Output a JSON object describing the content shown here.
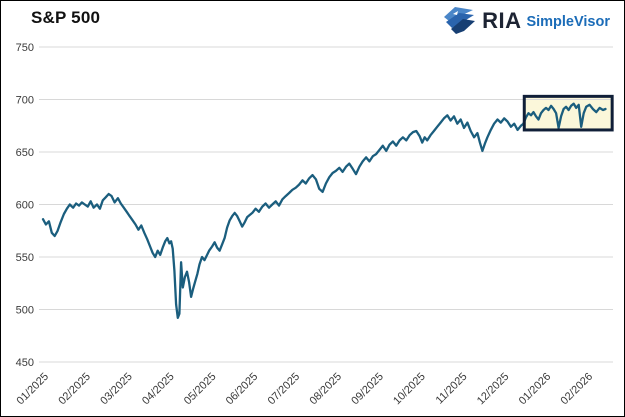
{
  "header": {
    "title": "S&P 500",
    "logo": {
      "brand": "RIA",
      "product": "SimpleVisor",
      "icon": "eagle-icon",
      "brand_color": "#1d2433",
      "product_color": "#1b6cb8",
      "icon_colors": [
        "#4a86c8",
        "#2a64ad",
        "#173f73"
      ]
    }
  },
  "chart_data": {
    "type": "line",
    "title": "S&P 500",
    "xlabel": "",
    "ylabel": "",
    "x_unit": "months_since_01_2025",
    "x_tick_labels": [
      "01/2025",
      "02/2025",
      "03/2025",
      "04/2025",
      "05/2025",
      "06/2025",
      "07/2025",
      "08/2025",
      "09/2025",
      "10/2025",
      "11/2025",
      "12/2025",
      "01/2026",
      "02/2026"
    ],
    "y_tick_labels": [
      750,
      700,
      650,
      600,
      550,
      500,
      450
    ],
    "ylim": [
      450,
      750
    ],
    "grid": "horizontal",
    "grid_color": "#d8d8d8",
    "tick_label_color": "#3a3a3a",
    "legend": "none",
    "line_color": "#1b5e7e",
    "highlight_box": {
      "name": "recent-range-highlight",
      "t_start": 11.5,
      "t_end": 13.6,
      "v_top": 703,
      "v_bottom": 671,
      "fill": "#fbf7da",
      "border_color": "#101f38"
    },
    "series": [
      {
        "name": "S&P 500",
        "points": [
          [
            0.0,
            586
          ],
          [
            0.07,
            581
          ],
          [
            0.14,
            584
          ],
          [
            0.21,
            573
          ],
          [
            0.28,
            570
          ],
          [
            0.35,
            575
          ],
          [
            0.42,
            583
          ],
          [
            0.5,
            591
          ],
          [
            0.57,
            596
          ],
          [
            0.64,
            600
          ],
          [
            0.72,
            597
          ],
          [
            0.79,
            601
          ],
          [
            0.86,
            599
          ],
          [
            0.93,
            602
          ],
          [
            1.0,
            600
          ],
          [
            1.07,
            598
          ],
          [
            1.14,
            603
          ],
          [
            1.21,
            597
          ],
          [
            1.29,
            600
          ],
          [
            1.36,
            596
          ],
          [
            1.43,
            604
          ],
          [
            1.5,
            607
          ],
          [
            1.57,
            610
          ],
          [
            1.64,
            608
          ],
          [
            1.71,
            602
          ],
          [
            1.79,
            606
          ],
          [
            1.86,
            601
          ],
          [
            1.93,
            597
          ],
          [
            2.0,
            593
          ],
          [
            2.07,
            589
          ],
          [
            2.14,
            585
          ],
          [
            2.21,
            581
          ],
          [
            2.28,
            576
          ],
          [
            2.35,
            580
          ],
          [
            2.42,
            573
          ],
          [
            2.49,
            567
          ],
          [
            2.56,
            560
          ],
          [
            2.62,
            554
          ],
          [
            2.68,
            550
          ],
          [
            2.74,
            556
          ],
          [
            2.8,
            552
          ],
          [
            2.86,
            559
          ],
          [
            2.92,
            565
          ],
          [
            2.97,
            568
          ],
          [
            3.02,
            563
          ],
          [
            3.06,
            565
          ],
          [
            3.1,
            558
          ],
          [
            3.14,
            537
          ],
          [
            3.18,
            505
          ],
          [
            3.22,
            492
          ],
          [
            3.26,
            496
          ],
          [
            3.3,
            545
          ],
          [
            3.34,
            521
          ],
          [
            3.39,
            531
          ],
          [
            3.44,
            536
          ],
          [
            3.49,
            526
          ],
          [
            3.54,
            512
          ],
          [
            3.59,
            520
          ],
          [
            3.64,
            527
          ],
          [
            3.69,
            534
          ],
          [
            3.74,
            543
          ],
          [
            3.8,
            550
          ],
          [
            3.86,
            547
          ],
          [
            3.92,
            552
          ],
          [
            3.97,
            556
          ],
          [
            4.04,
            560
          ],
          [
            4.1,
            564
          ],
          [
            4.16,
            559
          ],
          [
            4.22,
            556
          ],
          [
            4.28,
            562
          ],
          [
            4.34,
            568
          ],
          [
            4.4,
            578
          ],
          [
            4.46,
            585
          ],
          [
            4.52,
            589
          ],
          [
            4.58,
            592
          ],
          [
            4.64,
            589
          ],
          [
            4.7,
            584
          ],
          [
            4.76,
            579
          ],
          [
            4.82,
            583
          ],
          [
            4.88,
            588
          ],
          [
            4.94,
            590
          ],
          [
            5.0,
            592
          ],
          [
            5.08,
            596
          ],
          [
            5.16,
            593
          ],
          [
            5.24,
            598
          ],
          [
            5.32,
            601
          ],
          [
            5.4,
            597
          ],
          [
            5.48,
            600
          ],
          [
            5.56,
            603
          ],
          [
            5.64,
            599
          ],
          [
            5.72,
            605
          ],
          [
            5.8,
            608
          ],
          [
            5.88,
            611
          ],
          [
            5.96,
            614
          ],
          [
            6.04,
            616
          ],
          [
            6.12,
            619
          ],
          [
            6.2,
            623
          ],
          [
            6.28,
            620
          ],
          [
            6.36,
            625
          ],
          [
            6.44,
            628
          ],
          [
            6.52,
            624
          ],
          [
            6.6,
            615
          ],
          [
            6.68,
            612
          ],
          [
            6.76,
            620
          ],
          [
            6.84,
            626
          ],
          [
            6.92,
            630
          ],
          [
            7.0,
            632
          ],
          [
            7.08,
            635
          ],
          [
            7.16,
            631
          ],
          [
            7.24,
            636
          ],
          [
            7.32,
            639
          ],
          [
            7.4,
            634
          ],
          [
            7.48,
            629
          ],
          [
            7.56,
            636
          ],
          [
            7.64,
            641
          ],
          [
            7.72,
            645
          ],
          [
            7.8,
            641
          ],
          [
            7.88,
            646
          ],
          [
            7.96,
            648
          ],
          [
            8.04,
            652
          ],
          [
            8.12,
            656
          ],
          [
            8.2,
            651
          ],
          [
            8.28,
            657
          ],
          [
            8.36,
            660
          ],
          [
            8.44,
            656
          ],
          [
            8.52,
            661
          ],
          [
            8.6,
            664
          ],
          [
            8.68,
            661
          ],
          [
            8.76,
            666
          ],
          [
            8.84,
            669
          ],
          [
            8.92,
            670
          ],
          [
            9.0,
            665
          ],
          [
            9.06,
            659
          ],
          [
            9.12,
            664
          ],
          [
            9.18,
            661
          ],
          [
            9.26,
            666
          ],
          [
            9.34,
            670
          ],
          [
            9.42,
            674
          ],
          [
            9.5,
            678
          ],
          [
            9.58,
            682
          ],
          [
            9.66,
            685
          ],
          [
            9.74,
            680
          ],
          [
            9.82,
            684
          ],
          [
            9.9,
            677
          ],
          [
            9.98,
            681
          ],
          [
            10.06,
            673
          ],
          [
            10.14,
            678
          ],
          [
            10.22,
            670
          ],
          [
            10.3,
            664
          ],
          [
            10.38,
            668
          ],
          [
            10.44,
            659
          ],
          [
            10.5,
            651
          ],
          [
            10.56,
            658
          ],
          [
            10.62,
            664
          ],
          [
            10.7,
            671
          ],
          [
            10.78,
            677
          ],
          [
            10.86,
            681
          ],
          [
            10.94,
            678
          ],
          [
            11.02,
            682
          ],
          [
            11.1,
            679
          ],
          [
            11.18,
            674
          ],
          [
            11.26,
            677
          ],
          [
            11.34,
            671
          ],
          [
            11.42,
            675
          ],
          [
            11.48,
            677
          ],
          [
            11.54,
            683
          ],
          [
            11.6,
            687
          ],
          [
            11.66,
            685
          ],
          [
            11.72,
            688
          ],
          [
            11.78,
            684
          ],
          [
            11.84,
            681
          ],
          [
            11.9,
            687
          ],
          [
            11.96,
            690
          ],
          [
            12.02,
            692
          ],
          [
            12.08,
            690
          ],
          [
            12.14,
            694
          ],
          [
            12.2,
            691
          ],
          [
            12.26,
            687
          ],
          [
            12.32,
            673
          ],
          [
            12.38,
            684
          ],
          [
            12.44,
            691
          ],
          [
            12.5,
            693
          ],
          [
            12.56,
            690
          ],
          [
            12.62,
            694
          ],
          [
            12.68,
            696
          ],
          [
            12.74,
            692
          ],
          [
            12.8,
            695
          ],
          [
            12.86,
            674
          ],
          [
            12.92,
            687
          ],
          [
            12.98,
            693
          ],
          [
            13.06,
            695
          ],
          [
            13.14,
            691
          ],
          [
            13.22,
            688
          ],
          [
            13.3,
            692
          ],
          [
            13.38,
            690
          ],
          [
            13.44,
            691
          ]
        ]
      }
    ]
  }
}
